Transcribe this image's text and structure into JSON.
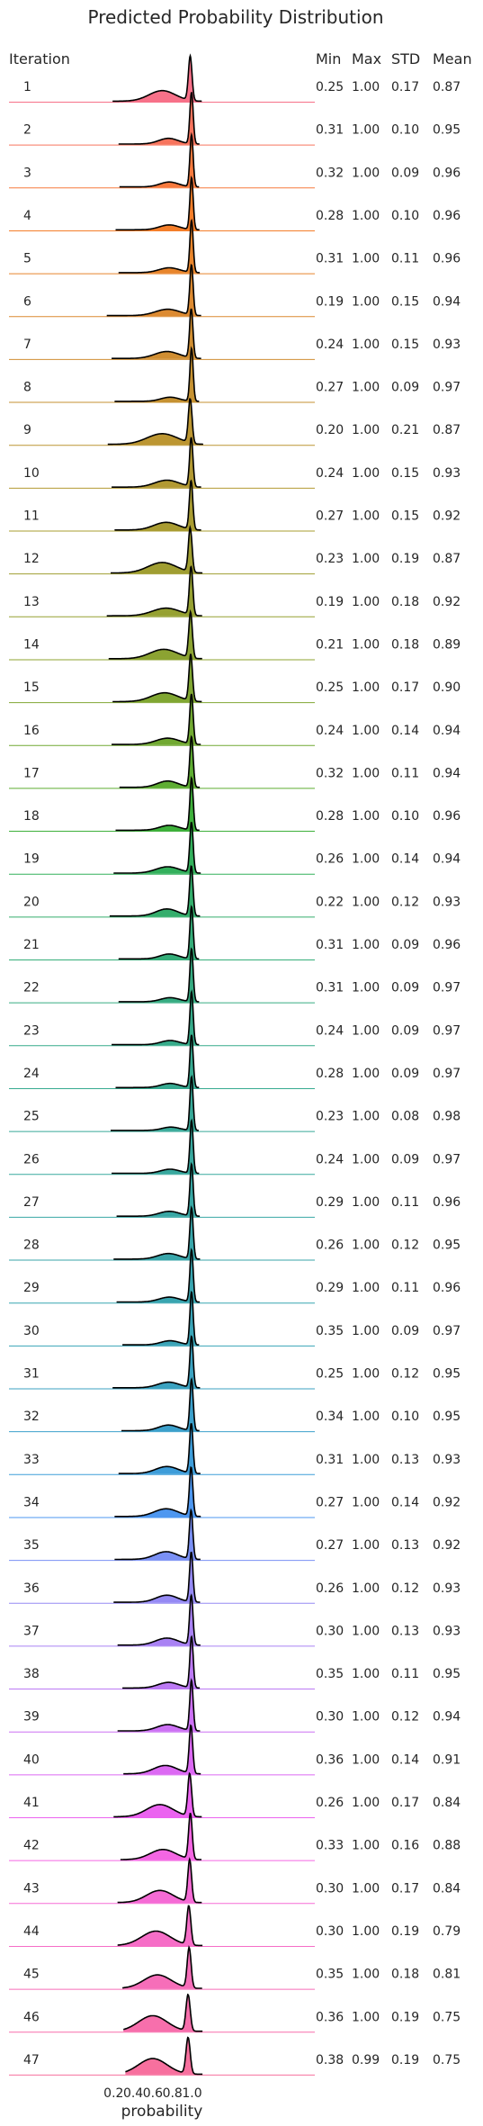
{
  "chart_data": {
    "type": "ridgeline",
    "title": "Predicted Probability Distribution",
    "xlabel": "probability",
    "x_ticks": [
      "0.2",
      "0.4",
      "0.6",
      "0.8",
      "1.0"
    ],
    "x_tick_values": [
      0.2,
      0.4,
      0.6,
      0.8,
      1.0
    ],
    "columns": [
      "Iteration",
      "Min",
      "Max",
      "STD",
      "Mean"
    ],
    "rows": [
      {
        "iteration": "1",
        "min": "0.25",
        "max": "1.00",
        "std": "0.17",
        "mean": "0.87",
        "color": "#f77189"
      },
      {
        "iteration": "2",
        "min": "0.31",
        "max": "1.00",
        "std": "0.10",
        "mean": "0.95",
        "color": "#f7745d"
      },
      {
        "iteration": "3",
        "min": "0.32",
        "max": "1.00",
        "std": "0.09",
        "mean": "0.96",
        "color": "#f77a3e"
      },
      {
        "iteration": "4",
        "min": "0.28",
        "max": "1.00",
        "std": "0.10",
        "mean": "0.96",
        "color": "#f47e2a"
      },
      {
        "iteration": "5",
        "min": "0.31",
        "max": "1.00",
        "std": "0.11",
        "mean": "0.96",
        "color": "#e8852c"
      },
      {
        "iteration": "6",
        "min": "0.19",
        "max": "1.00",
        "std": "0.15",
        "mean": "0.94",
        "color": "#dc8a31"
      },
      {
        "iteration": "7",
        "min": "0.24",
        "max": "1.00",
        "std": "0.15",
        "mean": "0.93",
        "color": "#d08e32"
      },
      {
        "iteration": "8",
        "min": "0.27",
        "max": "1.00",
        "std": "0.09",
        "mean": "0.97",
        "color": "#c69232"
      },
      {
        "iteration": "9",
        "min": "0.20",
        "max": "1.00",
        "std": "0.21",
        "mean": "0.87",
        "color": "#bc9632"
      },
      {
        "iteration": "10",
        "min": "0.24",
        "max": "1.00",
        "std": "0.15",
        "mean": "0.93",
        "color": "#b29932"
      },
      {
        "iteration": "11",
        "min": "0.27",
        "max": "1.00",
        "std": "0.15",
        "mean": "0.92",
        "color": "#a99c32"
      },
      {
        "iteration": "12",
        "min": "0.23",
        "max": "1.00",
        "std": "0.19",
        "mean": "0.87",
        "color": "#a09e32"
      },
      {
        "iteration": "13",
        "min": "0.19",
        "max": "1.00",
        "std": "0.18",
        "mean": "0.92",
        "color": "#96a132"
      },
      {
        "iteration": "14",
        "min": "0.21",
        "max": "1.00",
        "std": "0.18",
        "mean": "0.89",
        "color": "#8ca332"
      },
      {
        "iteration": "15",
        "min": "0.25",
        "max": "1.00",
        "std": "0.17",
        "mean": "0.90",
        "color": "#80a632"
      },
      {
        "iteration": "16",
        "min": "0.24",
        "max": "1.00",
        "std": "0.14",
        "mean": "0.94",
        "color": "#71a932"
      },
      {
        "iteration": "17",
        "min": "0.32",
        "max": "1.00",
        "std": "0.11",
        "mean": "0.94",
        "color": "#5ead32"
      },
      {
        "iteration": "18",
        "min": "0.28",
        "max": "1.00",
        "std": "0.10",
        "mean": "0.96",
        "color": "#3eb03b"
      },
      {
        "iteration": "19",
        "min": "0.26",
        "max": "1.00",
        "std": "0.14",
        "mean": "0.94",
        "color": "#33b05c"
      },
      {
        "iteration": "20",
        "min": "0.22",
        "max": "1.00",
        "std": "0.12",
        "mean": "0.93",
        "color": "#34ae6c"
      },
      {
        "iteration": "21",
        "min": "0.31",
        "max": "1.00",
        "std": "0.09",
        "mean": "0.96",
        "color": "#35ad79"
      },
      {
        "iteration": "22",
        "min": "0.31",
        "max": "1.00",
        "std": "0.09",
        "mean": "0.97",
        "color": "#36ac82"
      },
      {
        "iteration": "23",
        "min": "0.24",
        "max": "1.00",
        "std": "0.09",
        "mean": "0.97",
        "color": "#36ab8a"
      },
      {
        "iteration": "24",
        "min": "0.28",
        "max": "1.00",
        "std": "0.09",
        "mean": "0.97",
        "color": "#37aa91"
      },
      {
        "iteration": "25",
        "min": "0.23",
        "max": "1.00",
        "std": "0.08",
        "mean": "0.98",
        "color": "#37a998"
      },
      {
        "iteration": "26",
        "min": "0.24",
        "max": "1.00",
        "std": "0.09",
        "mean": "0.97",
        "color": "#38a89e"
      },
      {
        "iteration": "27",
        "min": "0.29",
        "max": "1.00",
        "std": "0.11",
        "mean": "0.96",
        "color": "#38a7a4"
      },
      {
        "iteration": "28",
        "min": "0.26",
        "max": "1.00",
        "std": "0.12",
        "mean": "0.95",
        "color": "#39a6aa"
      },
      {
        "iteration": "29",
        "min": "0.29",
        "max": "1.00",
        "std": "0.11",
        "mean": "0.96",
        "color": "#39a5b0"
      },
      {
        "iteration": "30",
        "min": "0.35",
        "max": "1.00",
        "std": "0.09",
        "mean": "0.97",
        "color": "#3aa4b7"
      },
      {
        "iteration": "31",
        "min": "0.25",
        "max": "1.00",
        "std": "0.12",
        "mean": "0.95",
        "color": "#3ba2c0"
      },
      {
        "iteration": "32",
        "min": "0.34",
        "max": "1.00",
        "std": "0.10",
        "mean": "0.95",
        "color": "#3ca0cb"
      },
      {
        "iteration": "33",
        "min": "0.31",
        "max": "1.00",
        "std": "0.13",
        "mean": "0.93",
        "color": "#3e9dd9"
      },
      {
        "iteration": "34",
        "min": "0.27",
        "max": "1.00",
        "std": "0.14",
        "mean": "0.92",
        "color": "#4d97f0"
      },
      {
        "iteration": "35",
        "min": "0.27",
        "max": "1.00",
        "std": "0.13",
        "mean": "0.92",
        "color": "#7a90f4"
      },
      {
        "iteration": "36",
        "min": "0.26",
        "max": "1.00",
        "std": "0.12",
        "mean": "0.93",
        "color": "#958af4"
      },
      {
        "iteration": "37",
        "min": "0.30",
        "max": "1.00",
        "std": "0.13",
        "mean": "0.93",
        "color": "#a982f4"
      },
      {
        "iteration": "38",
        "min": "0.35",
        "max": "1.00",
        "std": "0.11",
        "mean": "0.95",
        "color": "#bc7af4"
      },
      {
        "iteration": "39",
        "min": "0.30",
        "max": "1.00",
        "std": "0.12",
        "mean": "0.94",
        "color": "#cc71f4"
      },
      {
        "iteration": "40",
        "min": "0.36",
        "max": "1.00",
        "std": "0.14",
        "mean": "0.91",
        "color": "#dc69f3"
      },
      {
        "iteration": "41",
        "min": "0.26",
        "max": "1.00",
        "std": "0.17",
        "mean": "0.84",
        "color": "#eb63f0"
      },
      {
        "iteration": "42",
        "min": "0.33",
        "max": "1.00",
        "std": "0.16",
        "mean": "0.88",
        "color": "#f466e3"
      },
      {
        "iteration": "43",
        "min": "0.30",
        "max": "1.00",
        "std": "0.17",
        "mean": "0.84",
        "color": "#f56bd5"
      },
      {
        "iteration": "44",
        "min": "0.30",
        "max": "1.00",
        "std": "0.19",
        "mean": "0.79",
        "color": "#f66ec7"
      },
      {
        "iteration": "45",
        "min": "0.35",
        "max": "1.00",
        "std": "0.18",
        "mean": "0.81",
        "color": "#f66eb9"
      },
      {
        "iteration": "46",
        "min": "0.36",
        "max": "1.00",
        "std": "0.19",
        "mean": "0.75",
        "color": "#f76fac"
      },
      {
        "iteration": "47",
        "min": "0.38",
        "max": "0.99",
        "std": "0.19",
        "mean": "0.75",
        "color": "#f7709e"
      }
    ]
  }
}
